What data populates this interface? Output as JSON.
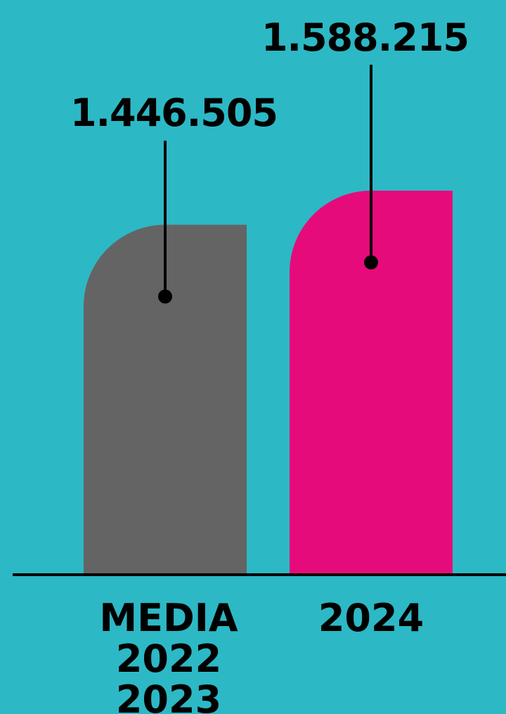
{
  "chart_data": {
    "type": "bar",
    "categories": [
      [
        "MEDIA",
        "2022",
        "2023"
      ],
      [
        "2024"
      ]
    ],
    "values": [
      1446505,
      1588215
    ],
    "value_labels": [
      "1.446.505",
      "1.588.215"
    ],
    "colors": [
      "#646464",
      "#e50b7b"
    ],
    "background": "#2db8c5",
    "ylim": [
      0,
      1800000
    ],
    "grid": false,
    "legend": "none"
  }
}
